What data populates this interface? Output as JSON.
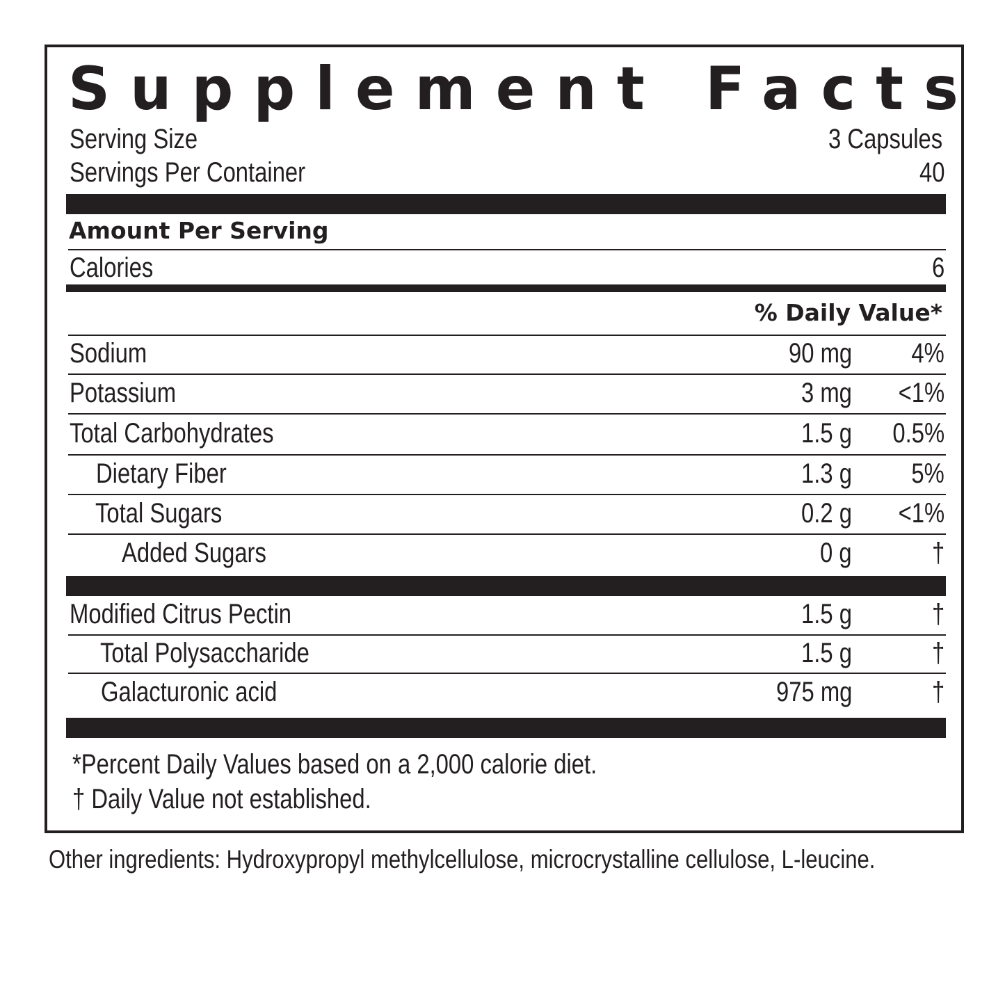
{
  "title": "Supplement Facts",
  "serving_size": {
    "label": "Serving Size",
    "value": "3 Capsules"
  },
  "servings_per_container": {
    "label": "Servings Per Container",
    "value": "40"
  },
  "amount_per_serving": "Amount Per Serving",
  "calories": {
    "label": "Calories",
    "value": "6"
  },
  "daily_value_header": "% Daily Value*",
  "nutrients": [
    {
      "name": "Sodium",
      "amount": "90 mg",
      "dv": "4%"
    },
    {
      "name": "Potassium",
      "amount": "3 mg",
      "dv": "<1%"
    },
    {
      "name": "Total Carbohydrates",
      "amount": "1.5 g",
      "dv": "0.5%"
    },
    {
      "name": "Dietary Fiber",
      "amount": "1.3 g",
      "dv": "5%"
    },
    {
      "name": "Total Sugars",
      "amount": "0.2 g",
      "dv": "<1%"
    },
    {
      "name": "Added Sugars",
      "amount": "0 g",
      "dv": "†"
    }
  ],
  "ingredients": [
    {
      "name": "Modified Citrus Pectin",
      "amount": "1.5 g",
      "dv": "†"
    },
    {
      "name": "Total Polysaccharide",
      "amount": "1.5 g",
      "dv": "†"
    },
    {
      "name": "Galacturonic acid",
      "amount": "975 mg",
      "dv": "†"
    }
  ],
  "footnotes": [
    "*Percent Daily Values based on a 2,000 calorie diet.",
    "† Daily Value not established."
  ],
  "other_ingredients": "Other ingredients: Hydroxypropyl methylcellulose, microcrystalline cellulose, L-leucine."
}
